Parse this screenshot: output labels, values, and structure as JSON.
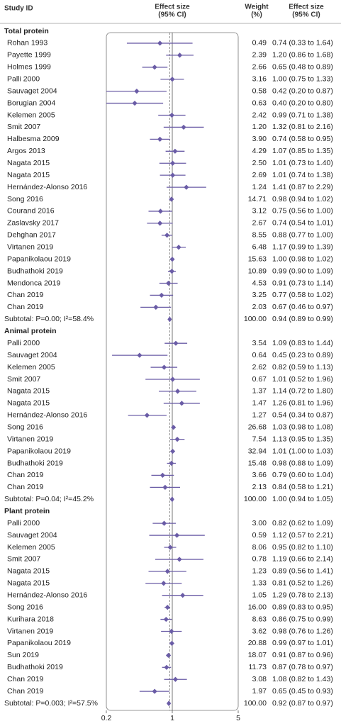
{
  "chart_data": {
    "type": "forest",
    "xlim": [
      0.2,
      5
    ],
    "xticks": [
      0.2,
      1,
      5
    ],
    "log": true,
    "color": "#6a5ca6",
    "null_value": 1,
    "header": {
      "study": "Study ID",
      "effect_plot": [
        "Effect size",
        "(95% CI)"
      ],
      "weight": [
        "Weight",
        "(%)"
      ],
      "effect": [
        "Effect size",
        "(95% CI)"
      ]
    },
    "groups": [
      {
        "name": "Total protein",
        "rows": [
          {
            "study": "Rohan 1993",
            "weight": "0.49",
            "effect": "0.74 (0.33 to 1.64)",
            "est": 0.74,
            "lo": 0.33,
            "hi": 1.64
          },
          {
            "study": "Payette 1999",
            "weight": "2.39",
            "effect": "1.20 (0.86 to 1.68)",
            "est": 1.2,
            "lo": 0.86,
            "hi": 1.68
          },
          {
            "study": "Holmes 1999",
            "weight": "2.66",
            "effect": "0.65 (0.48 to 0.89)",
            "est": 0.65,
            "lo": 0.48,
            "hi": 0.89
          },
          {
            "study": "Palli 2000",
            "weight": "3.16",
            "effect": "1.00 (0.75 to 1.33)",
            "est": 1.0,
            "lo": 0.75,
            "hi": 1.33
          },
          {
            "study": "Sauvaget 2004",
            "weight": "0.58",
            "effect": "0.42 (0.20 to 0.87)",
            "est": 0.42,
            "lo": 0.2,
            "hi": 0.87
          },
          {
            "study": "Borugian 2004",
            "weight": "0.63",
            "effect": "0.40 (0.20 to 0.80)",
            "est": 0.4,
            "lo": 0.2,
            "hi": 0.8
          },
          {
            "study": "Kelemen 2005",
            "weight": "2.42",
            "effect": "0.99 (0.71 to 1.38)",
            "est": 0.99,
            "lo": 0.71,
            "hi": 1.38
          },
          {
            "study": "Smit 2007",
            "weight": "1.20",
            "effect": "1.32 (0.81 to 2.16)",
            "est": 1.32,
            "lo": 0.81,
            "hi": 2.16
          },
          {
            "study": "Halbesma 2009",
            "weight": "3.90",
            "effect": "0.74 (0.58 to 0.95)",
            "est": 0.74,
            "lo": 0.58,
            "hi": 0.95
          },
          {
            "study": "Argos 2013",
            "weight": "4.29",
            "effect": "1.07 (0.85 to 1.35)",
            "est": 1.07,
            "lo": 0.85,
            "hi": 1.35
          },
          {
            "study": "Nagata 2015",
            "weight": "2.50",
            "effect": "1.01 (0.73 to 1.40)",
            "est": 1.01,
            "lo": 0.73,
            "hi": 1.4
          },
          {
            "study": "Nagata 2015",
            "weight": "2.69",
            "effect": "1.01 (0.74 to 1.38)",
            "est": 1.01,
            "lo": 0.74,
            "hi": 1.38
          },
          {
            "study": "Hernández-Alonso 2016",
            "weight": "1.24",
            "effect": "1.41 (0.87 to 2.29)",
            "est": 1.41,
            "lo": 0.87,
            "hi": 2.29
          },
          {
            "study": "Song 2016",
            "weight": "14.71",
            "effect": "0.98 (0.94 to 1.02)",
            "est": 0.98,
            "lo": 0.94,
            "hi": 1.02
          },
          {
            "study": "Courand 2016",
            "weight": "3.12",
            "effect": "0.75 (0.56 to 1.00)",
            "est": 0.75,
            "lo": 0.56,
            "hi": 1.0
          },
          {
            "study": "Zaslavsky 2017",
            "weight": "2.67",
            "effect": "0.74 (0.54 to 1.01)",
            "est": 0.74,
            "lo": 0.54,
            "hi": 1.01
          },
          {
            "study": "Dehghan 2017",
            "weight": "8.55",
            "effect": "0.88 (0.77 to 1.00)",
            "est": 0.88,
            "lo": 0.77,
            "hi": 1.0
          },
          {
            "study": "Virtanen 2019",
            "weight": "6.48",
            "effect": "1.17 (0.99 to 1.39)",
            "est": 1.17,
            "lo": 0.99,
            "hi": 1.39
          },
          {
            "study": "Papanikolaou 2019",
            "weight": "15.63",
            "effect": "1.00 (0.98 to 1.02)",
            "est": 1.0,
            "lo": 0.98,
            "hi": 1.02
          },
          {
            "study": "Budhathoki 2019",
            "weight": "10.89",
            "effect": "0.99 (0.90 to 1.09)",
            "est": 0.99,
            "lo": 0.9,
            "hi": 1.09
          },
          {
            "study": "Mendonca 2019",
            "weight": "4.53",
            "effect": "0.91 (0.73 to 1.14)",
            "est": 0.91,
            "lo": 0.73,
            "hi": 1.14
          },
          {
            "study": "Chan 2019",
            "weight": "3.25",
            "effect": "0.77 (0.58 to 1.02)",
            "est": 0.77,
            "lo": 0.58,
            "hi": 1.02
          },
          {
            "study": "Chan 2019",
            "weight": "2.03",
            "effect": "0.67 (0.46 to 0.97)",
            "est": 0.67,
            "lo": 0.46,
            "hi": 0.97
          }
        ],
        "subtotal": {
          "study": "Subtotal: P=0.00; I²=58.4%",
          "weight": "100.00",
          "effect": "0.94 (0.89 to 0.99)",
          "est": 0.94,
          "lo": 0.89,
          "hi": 0.99
        }
      },
      {
        "name": "Animal protein",
        "rows": [
          {
            "study": "Palli 2000",
            "weight": "3.54",
            "effect": "1.09 (0.83 to 1.44)",
            "est": 1.09,
            "lo": 0.83,
            "hi": 1.44
          },
          {
            "study": "Sauvaget 2004",
            "weight": "0.64",
            "effect": "0.45 (0.23 to 0.89)",
            "est": 0.45,
            "lo": 0.23,
            "hi": 0.89
          },
          {
            "study": "Kelemen 2005",
            "weight": "2.62",
            "effect": "0.82 (0.59 to 1.13)",
            "est": 0.82,
            "lo": 0.59,
            "hi": 1.13
          },
          {
            "study": "Smit 2007",
            "weight": "0.67",
            "effect": "1.01 (0.52 to 1.96)",
            "est": 1.01,
            "lo": 0.52,
            "hi": 1.96
          },
          {
            "study": "Nagata 2015",
            "weight": "1.37",
            "effect": "1.14 (0.72 to 1.80)",
            "est": 1.14,
            "lo": 0.72,
            "hi": 1.8
          },
          {
            "study": "Nagata 2015",
            "weight": "1.47",
            "effect": "1.26 (0.81 to 1.96)",
            "est": 1.26,
            "lo": 0.81,
            "hi": 1.96
          },
          {
            "study": "Hernández-Alonso 2016",
            "weight": "1.27",
            "effect": "0.54 (0.34 to 0.87)",
            "est": 0.54,
            "lo": 0.34,
            "hi": 0.87
          },
          {
            "study": "Song 2016",
            "weight": "26.68",
            "effect": "1.03 (0.98 to 1.08)",
            "est": 1.03,
            "lo": 0.98,
            "hi": 1.08
          },
          {
            "study": "Virtanen 2019",
            "weight": "7.54",
            "effect": "1.13 (0.95 to 1.35)",
            "est": 1.13,
            "lo": 0.95,
            "hi": 1.35
          },
          {
            "study": "Papanikolaou 2019",
            "weight": "32.94",
            "effect": "1.01 (1.00 to 1.03)",
            "est": 1.01,
            "lo": 1.0,
            "hi": 1.03
          },
          {
            "study": "Budhathoki 2019",
            "weight": "15.48",
            "effect": "0.98 (0.88 to 1.09)",
            "est": 0.98,
            "lo": 0.88,
            "hi": 1.09
          },
          {
            "study": "Chan 2019",
            "weight": "3.66",
            "effect": "0.79 (0.60 to 1.04)",
            "est": 0.79,
            "lo": 0.6,
            "hi": 1.04
          },
          {
            "study": "Chan 2019",
            "weight": "2.13",
            "effect": "0.84 (0.58 to 1.21)",
            "est": 0.84,
            "lo": 0.58,
            "hi": 1.21
          }
        ],
        "subtotal": {
          "study": "Subtotal: P=0.04; I²=45.2%",
          "weight": "100.00",
          "effect": "1.00 (0.94 to 1.05)",
          "est": 1.0,
          "lo": 0.94,
          "hi": 1.05
        }
      },
      {
        "name": "Plant protein",
        "rows": [
          {
            "study": "Palli 2000",
            "weight": "3.00",
            "effect": "0.82 (0.62 to 1.09)",
            "est": 0.82,
            "lo": 0.62,
            "hi": 1.09
          },
          {
            "study": "Sauvaget 2004",
            "weight": "0.59",
            "effect": "1.12 (0.57 to 2.21)",
            "est": 1.12,
            "lo": 0.57,
            "hi": 2.21
          },
          {
            "study": "Kelemen 2005",
            "weight": "8.06",
            "effect": "0.95 (0.82 to 1.10)",
            "est": 0.95,
            "lo": 0.82,
            "hi": 1.1
          },
          {
            "study": "Smit 2007",
            "weight": "0.78",
            "effect": "1.19 (0.66 to 2.14)",
            "est": 1.19,
            "lo": 0.66,
            "hi": 2.14
          },
          {
            "study": "Nagata 2015",
            "weight": "1.23",
            "effect": "0.89 (0.56 to 1.41)",
            "est": 0.89,
            "lo": 0.56,
            "hi": 1.41
          },
          {
            "study": "Nagata 2015",
            "weight": "1.33",
            "effect": "0.81 (0.52 to 1.26)",
            "est": 0.81,
            "lo": 0.52,
            "hi": 1.26
          },
          {
            "study": "Hernández-Alonso 2016",
            "weight": "1.05",
            "effect": "1.29 (0.78 to 2.13)",
            "est": 1.29,
            "lo": 0.78,
            "hi": 2.13
          },
          {
            "study": "Song 2016",
            "weight": "16.00",
            "effect": "0.89 (0.83 to 0.95)",
            "est": 0.89,
            "lo": 0.83,
            "hi": 0.95
          },
          {
            "study": "Kurihara 2018",
            "weight": "8.63",
            "effect": "0.86 (0.75 to 0.99)",
            "est": 0.86,
            "lo": 0.75,
            "hi": 0.99
          },
          {
            "study": "Virtanen 2019",
            "weight": "3.62",
            "effect": "0.98 (0.76 to 1.26)",
            "est": 0.98,
            "lo": 0.76,
            "hi": 1.26
          },
          {
            "study": "Papanikolaou 2019",
            "weight": "20.88",
            "effect": "0.99 (0.97 to 1.01)",
            "est": 0.99,
            "lo": 0.97,
            "hi": 1.01
          },
          {
            "study": "Sun 2019",
            "weight": "18.07",
            "effect": "0.91 (0.87 to 0.96)",
            "est": 0.91,
            "lo": 0.87,
            "hi": 0.96
          },
          {
            "study": "Budhathoki 2019",
            "weight": "11.73",
            "effect": "0.87 (0.78 to 0.97)",
            "est": 0.87,
            "lo": 0.78,
            "hi": 0.97
          },
          {
            "study": "Chan 2019",
            "weight": "3.08",
            "effect": "1.08 (0.82 to 1.43)",
            "est": 1.08,
            "lo": 0.82,
            "hi": 1.43
          },
          {
            "study": "Chan 2019",
            "weight": "1.97",
            "effect": "0.65 (0.45 to 0.93)",
            "est": 0.65,
            "lo": 0.45,
            "hi": 0.93
          }
        ],
        "subtotal": {
          "study": "Subtotal: P=0.003; I²=57.5%",
          "weight": "100.00",
          "effect": "0.92 (0.87 to 0.97)",
          "est": 0.92,
          "lo": 0.87,
          "hi": 0.97
        }
      }
    ]
  }
}
